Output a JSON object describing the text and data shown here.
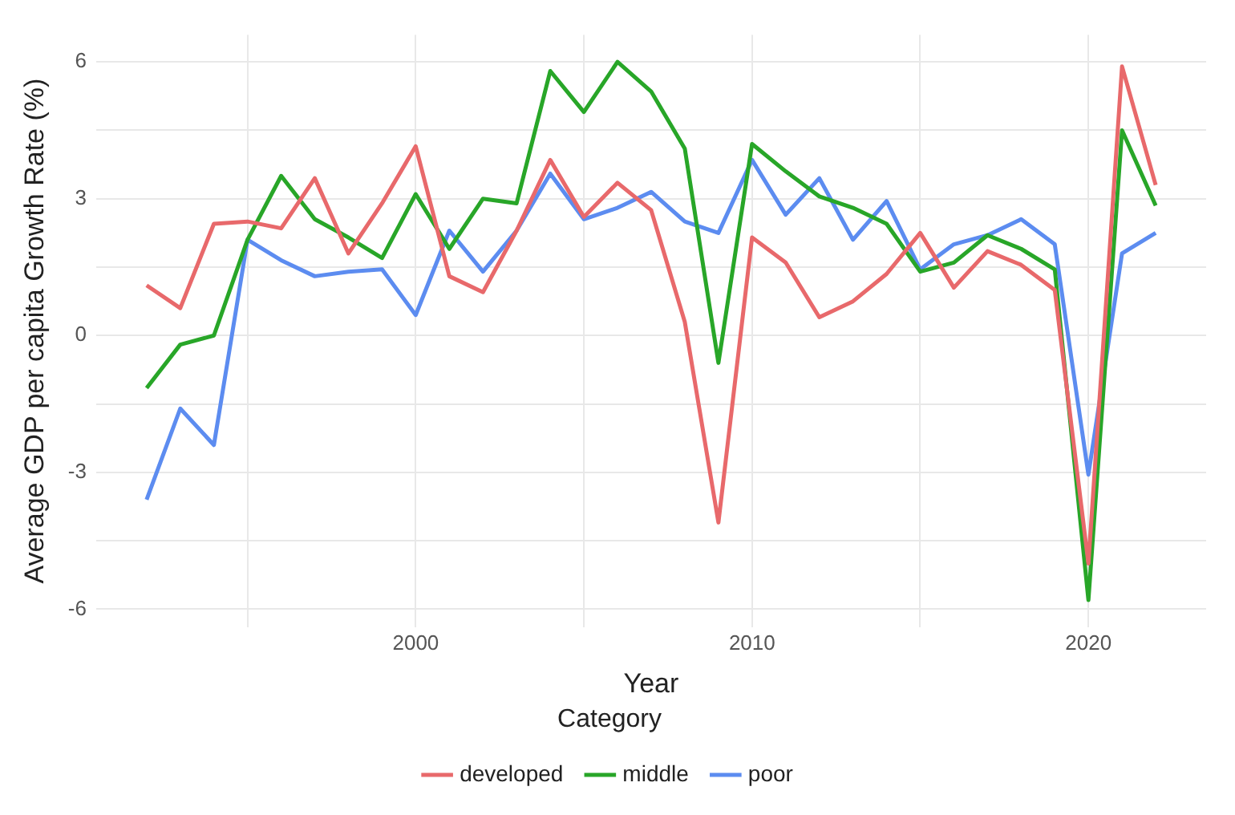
{
  "chart_data": {
    "type": "line",
    "xlabel": "Year",
    "ylabel": "Average GDP per capita Growth Rate (%)",
    "legend_title": "Category",
    "legend": "bottom",
    "grid": true,
    "marker": "none",
    "line_style": "solid",
    "x": [
      1992,
      1993,
      1994,
      1995,
      1996,
      1997,
      1998,
      1999,
      2000,
      2001,
      2002,
      2003,
      2004,
      2005,
      2006,
      2007,
      2008,
      2009,
      2010,
      2011,
      2012,
      2013,
      2014,
      2015,
      2016,
      2017,
      2018,
      2019,
      2020,
      2021,
      2022
    ],
    "xlim": [
      1990.5,
      2023.5
    ],
    "xticks": [
      {
        "value": 1995,
        "label": null
      },
      2000,
      {
        "value": 2005,
        "label": null
      },
      2010,
      {
        "value": 2015,
        "label": null
      },
      2020
    ],
    "ylim": [
      -6.39,
      6.59
    ],
    "yticks": [
      -6,
      {
        "value": -4.5,
        "label": null
      },
      -3,
      {
        "value": -1.5,
        "label": null
      },
      0,
      {
        "value": 1.5,
        "label": null
      },
      3,
      {
        "value": 4.5,
        "label": null
      },
      6
    ],
    "series": [
      {
        "name": "developed",
        "color": "#e8696b",
        "values": [
          1.1,
          0.6,
          2.45,
          2.5,
          2.35,
          3.45,
          1.8,
          2.9,
          4.15,
          1.3,
          0.95,
          2.3,
          3.85,
          2.6,
          3.35,
          2.75,
          0.3,
          -4.1,
          2.15,
          1.6,
          0.4,
          0.75,
          1.35,
          2.25,
          1.05,
          1.85,
          1.55,
          1.0,
          -5.0,
          5.9,
          3.3
        ]
      },
      {
        "name": "middle",
        "color": "#28a628",
        "values": [
          -1.15,
          -0.2,
          0.0,
          2.1,
          3.5,
          2.55,
          2.15,
          1.7,
          3.1,
          1.9,
          3.0,
          2.9,
          5.8,
          4.9,
          6.0,
          5.35,
          4.1,
          -0.6,
          4.2,
          3.6,
          3.05,
          2.8,
          2.45,
          1.4,
          1.6,
          2.2,
          1.9,
          1.45,
          -5.8,
          4.5,
          2.85
        ]
      },
      {
        "name": "poor",
        "color": "#5c8cf0",
        "values": [
          -3.6,
          -1.6,
          -2.4,
          2.1,
          1.65,
          1.3,
          1.4,
          1.45,
          0.45,
          2.3,
          1.4,
          2.3,
          3.55,
          2.55,
          2.8,
          3.15,
          2.5,
          2.25,
          3.85,
          2.65,
          3.45,
          2.1,
          2.95,
          1.45,
          2.0,
          2.2,
          2.55,
          2.0,
          -3.05,
          1.8,
          2.25
        ]
      }
    ]
  }
}
